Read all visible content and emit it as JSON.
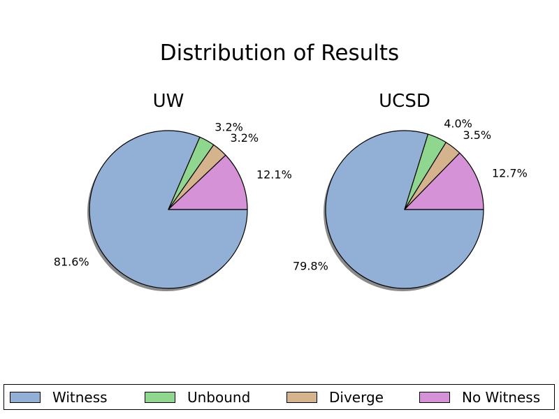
{
  "chart_data": {
    "type": "pie",
    "title": "Distribution of Results",
    "labels": [
      "Witness",
      "Unbound",
      "Diverge",
      "No Witness"
    ],
    "colors": [
      "#92b0d5",
      "#8fd68e",
      "#d4b38d",
      "#d592d6"
    ],
    "shadow": true,
    "legend_placement": "bottom",
    "charts": [
      {
        "title": "UW",
        "values": [
          81.6,
          3.2,
          3.2,
          12.1
        ],
        "pct_labels": [
          "81.6%",
          "3.2%",
          "3.2%",
          "12.1%"
        ]
      },
      {
        "title": "UCSD",
        "values": [
          79.8,
          4.0,
          3.5,
          12.7
        ],
        "pct_labels": [
          "79.8%",
          "4.0%",
          "3.5%",
          "12.7%"
        ]
      }
    ]
  }
}
